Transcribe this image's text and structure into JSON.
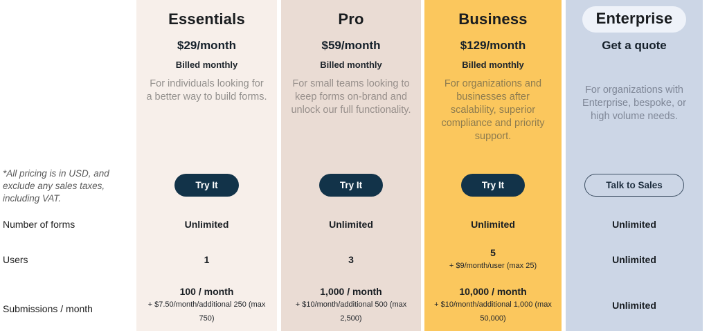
{
  "sidebar": {
    "pricing_note": "*All pricing is in USD, and exclude any sales taxes, including VAT.",
    "row_labels": {
      "forms": "Number of forms",
      "users": "Users",
      "submissions": "Submissions / month"
    }
  },
  "colors": {
    "page_bg": "#ffffff",
    "heading_text": "#191c1f",
    "cta_solid_bg": "#123349",
    "cta_solid_text": "#ffffff",
    "cta_outline_border": "#3d4f63",
    "cta_outline_text": "#1d2d3e",
    "enterprise_pill_bg": "#eef2f9"
  },
  "plans": [
    {
      "name": "Essentials",
      "bg": "#f7efea",
      "price": "$29/month",
      "billing_cycle": "Billed monthly",
      "description": "For individuals looking for a better way to build forms.",
      "desc_color": "#93908d",
      "cta_label": "Try It",
      "number_of_forms": "Unlimited",
      "users": "1",
      "users_note": "",
      "submissions": "100 / month",
      "submissions_note": "+ $7.50/month/additional 250 (max 750)"
    },
    {
      "name": "Pro",
      "bg": "#eadcd4",
      "price": "$59/month",
      "billing_cycle": "Billed monthly",
      "description": "For small teams looking to keep forms on-brand and unlock our full functionality.",
      "desc_color": "#978f8b",
      "cta_label": "Try It",
      "number_of_forms": "Unlimited",
      "users": "3",
      "users_note": "",
      "submissions": "1,000 / month",
      "submissions_note": "+ $10/month/additional 500 (max 2,500)"
    },
    {
      "name": "Business",
      "bg": "#fbc75d",
      "price": "$129/month",
      "billing_cycle": "Billed monthly",
      "description": "For organizations and businesses after scalability, superior compliance and priority support.",
      "desc_color": "#8e7c4f",
      "cta_label": "Try It",
      "number_of_forms": "Unlimited",
      "users": "5",
      "users_note": "+ $9/month/user (max 25)",
      "submissions": "10,000 / month",
      "submissions_note": "+ $10/month/additional 1,000 (max 50,000)"
    },
    {
      "name": "Enterprise",
      "bg": "#ccd6e6",
      "price": "Get a quote",
      "billing_cycle": "",
      "description": "For organizations with Enterprise, bespoke, or high volume needs.",
      "desc_color": "#7f8797",
      "cta_label": "Talk to Sales",
      "number_of_forms": "Unlimited",
      "users": "Unlimited",
      "users_note": "",
      "submissions": "Unlimited",
      "submissions_note": ""
    }
  ]
}
